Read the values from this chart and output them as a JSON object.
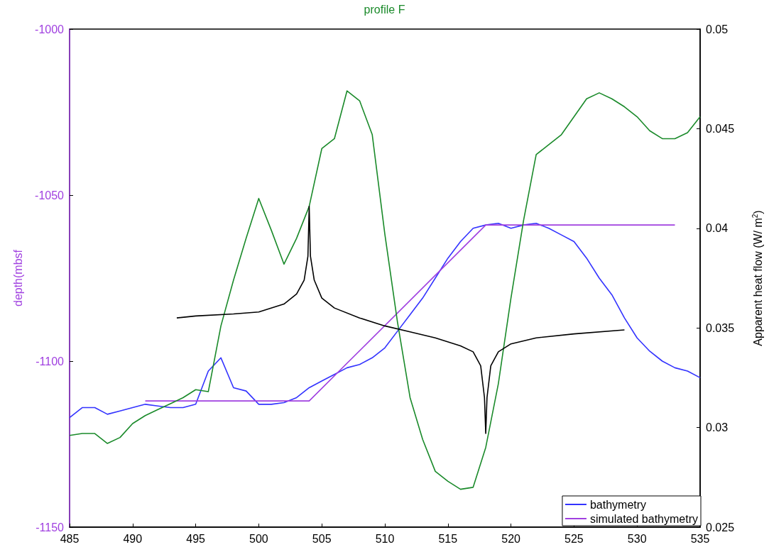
{
  "chart_data": {
    "type": "line",
    "title": "profile F",
    "ylabel": "depth(mbsf",
    "y2label": "Apparent heat flow (W/ m$^{2}$)",
    "xlim": [
      485,
      535
    ],
    "xticks": [
      485,
      490,
      495,
      500,
      505,
      510,
      515,
      520,
      525,
      530,
      535
    ],
    "ylim": [
      -1150,
      -1000
    ],
    "yticks": [
      -1150,
      -1100,
      -1050,
      -1000
    ],
    "y2lim": [
      0.025,
      0.05
    ],
    "y2ticks": [
      0.025,
      0.03,
      0.035,
      0.04,
      0.045,
      0.05
    ],
    "grid": false,
    "legend": "bottom right",
    "marker": "none",
    "line_style": "solid",
    "series": [
      {
        "name": "bathymetry",
        "color": "#3333ff",
        "x": [
          485,
          486,
          487,
          488,
          489,
          490,
          491,
          492,
          493,
          494,
          495,
          496,
          497,
          498,
          499,
          500,
          501,
          502,
          503,
          504,
          505,
          506,
          507,
          508,
          509,
          510,
          511,
          512,
          513,
          514,
          515,
          516,
          517,
          518,
          519,
          520,
          521,
          522,
          523,
          524,
          525,
          526,
          527,
          528,
          529,
          530,
          531,
          532,
          533,
          534,
          535
        ],
        "values": [
          -1117,
          -1114,
          -1114,
          -1116,
          -1115,
          -1114,
          -1113,
          -1113.5,
          -1114,
          -1114,
          -1113,
          -1103,
          -1099,
          -1108,
          -1109,
          -1113,
          -1113,
          -1112.5,
          -1111,
          -1108,
          -1106,
          -1104,
          -1102,
          -1101,
          -1099,
          -1096,
          -1091,
          -1086,
          -1081,
          -1075,
          -1069,
          -1064,
          -1060,
          -1059,
          -1058.5,
          -1060,
          -1059,
          -1058.5,
          -1060,
          -1062,
          -1064,
          -1069,
          -1075,
          -1080,
          -1087,
          -1093,
          -1097,
          -1100,
          -1102,
          -1103,
          -1105
        ]
      },
      {
        "name": "simulated bathymetry",
        "color": "#a040e0",
        "x": [
          491,
          504,
          518,
          533
        ],
        "values": [
          -1112,
          -1112,
          -1059,
          -1059
        ]
      },
      {
        "color": "#1a8a2a",
        "axis": "y2",
        "x": [
          485,
          486,
          487,
          488,
          489,
          490,
          491,
          492,
          493,
          494,
          495,
          496,
          497,
          498,
          499,
          500,
          501,
          502,
          503,
          504,
          505,
          506,
          507,
          508,
          509,
          510,
          511,
          512,
          513,
          514,
          515,
          516,
          517,
          518,
          519,
          520,
          521,
          522,
          523,
          524,
          525,
          526,
          527,
          528,
          529,
          530,
          531,
          532,
          533,
          534,
          535
        ],
        "values": [
          0.0296,
          0.0297,
          0.0297,
          0.0292,
          0.0295,
          0.0302,
          0.0306,
          0.0309,
          0.0312,
          0.0315,
          0.0319,
          0.0318,
          0.0351,
          0.0374,
          0.0395,
          0.0415,
          0.0399,
          0.0382,
          0.0395,
          0.0411,
          0.044,
          0.0445,
          0.0469,
          0.0464,
          0.0447,
          0.0397,
          0.0353,
          0.0315,
          0.0294,
          0.0278,
          0.0273,
          0.0269,
          0.027,
          0.029,
          0.0322,
          0.0365,
          0.0404,
          0.0437,
          0.0442,
          0.0447,
          0.0456,
          0.0465,
          0.0468,
          0.0465,
          0.0461,
          0.0456,
          0.0449,
          0.0445,
          0.0445,
          0.0448,
          0.0456
        ]
      },
      {
        "color": "#000000",
        "axis": "y2",
        "x": [
          493.5,
          495,
          498,
          500,
          502,
          503,
          503.6,
          503.9,
          504,
          504.1,
          504.4,
          505,
          506,
          508,
          510,
          512,
          514,
          516,
          517,
          517.6,
          517.9,
          518,
          518.1,
          518.4,
          519,
          520,
          522,
          525,
          529
        ],
        "values": [
          0.0355,
          0.0356,
          0.0357,
          0.0358,
          0.0362,
          0.0367,
          0.0374,
          0.0386,
          0.0411,
          0.0386,
          0.0374,
          0.0365,
          0.036,
          0.0355,
          0.0351,
          0.0348,
          0.0345,
          0.0341,
          0.0338,
          0.0331,
          0.0315,
          0.0297,
          0.0315,
          0.0331,
          0.0338,
          0.0342,
          0.0345,
          0.0347,
          0.0349
        ]
      }
    ]
  }
}
